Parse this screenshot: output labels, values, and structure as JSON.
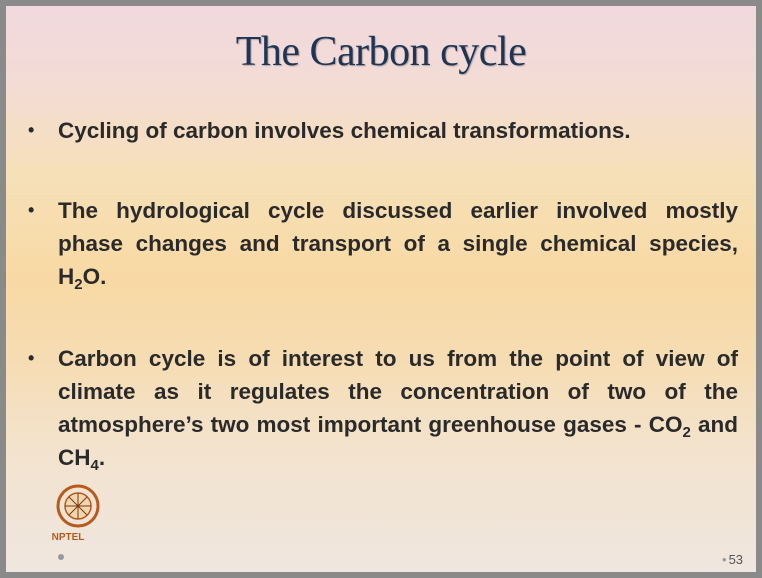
{
  "title": "The Carbon cycle",
  "bullets": [
    {
      "segments": [
        {
          "text": "Cycling of carbon involves chemical transformations."
        }
      ]
    },
    {
      "segments": [
        {
          "text": "The hydrological cycle discussed earlier involved mostly phase changes and transport of a single chemical species, H"
        },
        {
          "text": "2",
          "sub": true
        },
        {
          "text": "O."
        }
      ]
    },
    {
      "segments": [
        {
          "text": "Carbon cycle is of interest to us from the point of view of climate as it regulates the concentration of two of the atmosphere’s two most important greenhouse gases - CO"
        },
        {
          "text": "2",
          "sub": true
        },
        {
          "text": " and CH"
        },
        {
          "text": "4",
          "sub": true
        },
        {
          "text": "."
        }
      ]
    }
  ],
  "logo_text": "NPTEL",
  "page_number": "53"
}
